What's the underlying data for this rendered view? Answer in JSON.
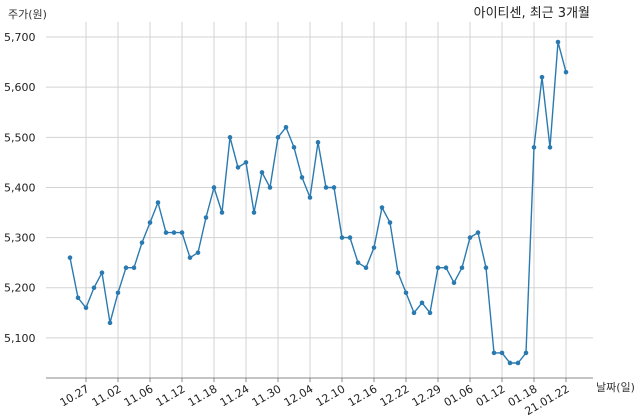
{
  "chart_data": {
    "type": "line",
    "title": "아이티센, 최근 3개월",
    "ylabel": "주가(원)",
    "xlabel": "날짜(일)",
    "ylim": [
      5020,
      5730
    ],
    "yticks": [
      5100,
      5200,
      5300,
      5400,
      5500,
      5600,
      5700
    ],
    "ytick_labels": [
      "5,100",
      "5,200",
      "5,300",
      "5,400",
      "5,500",
      "5,600",
      "5,700"
    ],
    "xtick_labels": [
      "10.27",
      "11.02",
      "11.06",
      "11.12",
      "11.18",
      "11.24",
      "11.30",
      "12.04",
      "12.10",
      "12.16",
      "12.22",
      "12.29",
      "01.06",
      "01.12",
      "01.18",
      "21.01.22"
    ],
    "xtick_index": [
      2,
      6,
      10,
      14,
      18,
      22,
      26,
      30,
      34,
      38,
      42,
      46,
      50,
      54,
      58,
      62
    ],
    "grid": true,
    "color": "#2a7ab0",
    "series": [
      {
        "values": [
          5260,
          5180,
          5160,
          5200,
          5230,
          5130,
          5190,
          5240,
          5240,
          5290,
          5330,
          5370,
          5310,
          5310,
          5310,
          5260,
          5270,
          5340,
          5400,
          5350,
          5500,
          5440,
          5450,
          5350,
          5430,
          5400,
          5500,
          5520,
          5480,
          5420,
          5380,
          5490,
          5400,
          5400,
          5300,
          5300,
          5250,
          5240,
          5280,
          5360,
          5330,
          5230,
          5190,
          5150,
          5170,
          5150,
          5240,
          5240,
          5210,
          5240,
          5300,
          5310,
          5240,
          5070,
          5070,
          5050,
          5050,
          5070,
          5480,
          5620,
          5480,
          5690,
          5630
        ]
      }
    ]
  }
}
